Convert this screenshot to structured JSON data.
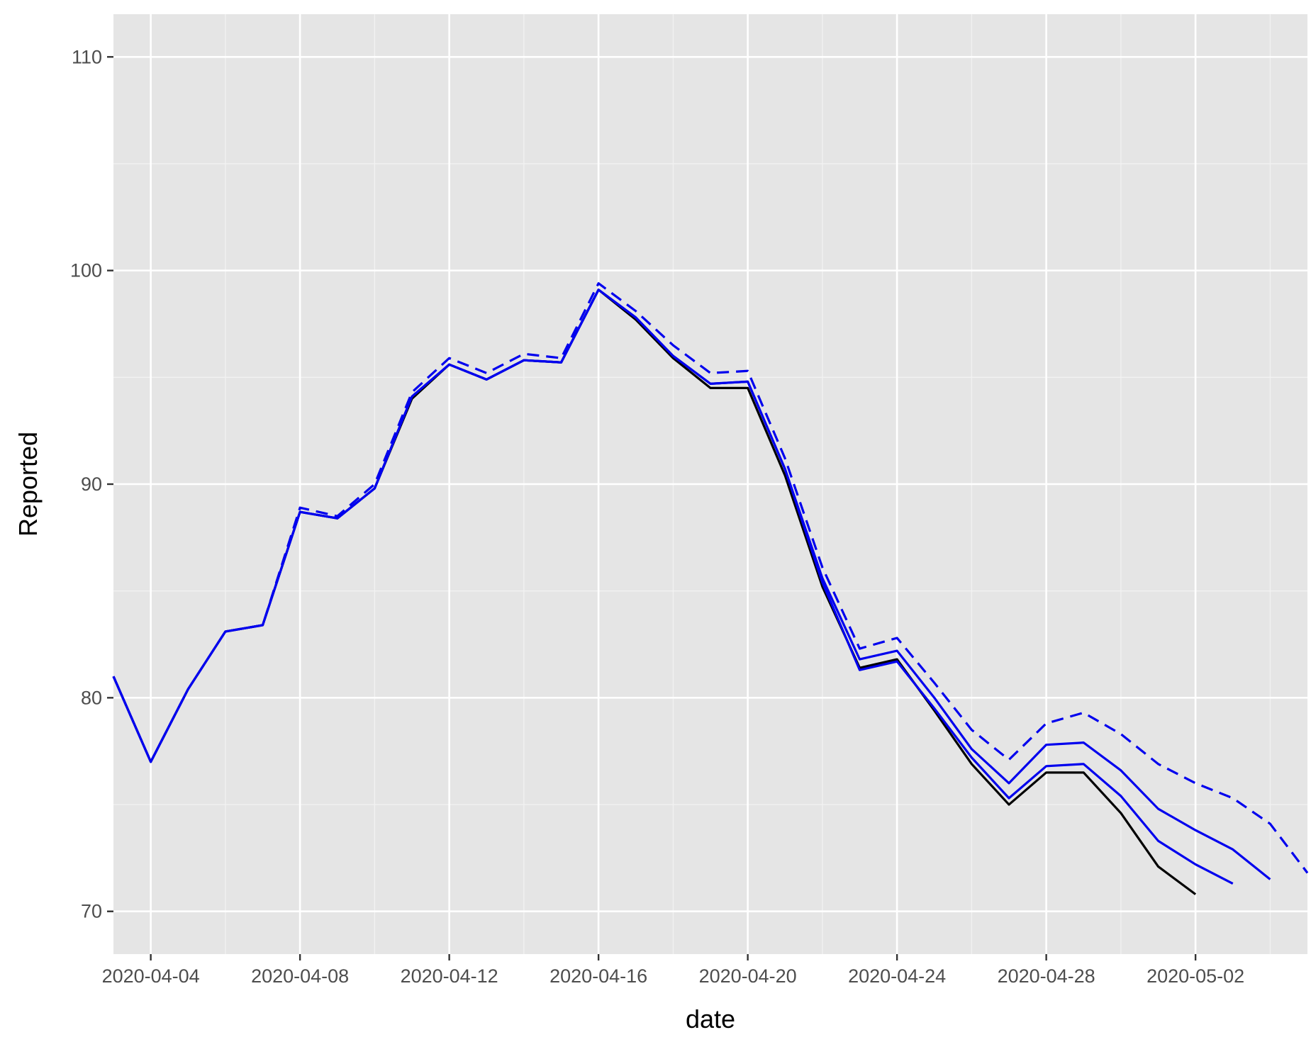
{
  "chart_data": {
    "type": "line",
    "xlabel": "date",
    "ylabel": "Reported",
    "xlim": [
      "2020-04-03",
      "2020-05-05"
    ],
    "ylim": [
      68,
      112
    ],
    "x_ticks": [
      "2020-04-04",
      "2020-04-08",
      "2020-04-12",
      "2020-04-16",
      "2020-04-20",
      "2020-04-24",
      "2020-04-28",
      "2020-05-02"
    ],
    "y_ticks": [
      70,
      80,
      90,
      100,
      110
    ],
    "grid": true,
    "legend": "none",
    "panel_background": "#e5e5e5",
    "series": [
      {
        "color": "#000000",
        "line_style": "solid",
        "points": [
          [
            "2020-04-03",
            81.0
          ],
          [
            "2020-04-04",
            77.0
          ],
          [
            "2020-04-05",
            80.4
          ],
          [
            "2020-04-06",
            83.1
          ],
          [
            "2020-04-07",
            83.4
          ],
          [
            "2020-04-08",
            88.7
          ],
          [
            "2020-04-09",
            88.4
          ],
          [
            "2020-04-10",
            89.8
          ],
          [
            "2020-04-11",
            94.0
          ],
          [
            "2020-04-12",
            95.6
          ],
          [
            "2020-04-13",
            94.9
          ],
          [
            "2020-04-14",
            95.8
          ],
          [
            "2020-04-15",
            95.7
          ],
          [
            "2020-04-16",
            99.1
          ],
          [
            "2020-04-17",
            97.7
          ],
          [
            "2020-04-18",
            95.9
          ],
          [
            "2020-04-19",
            94.5
          ],
          [
            "2020-04-20",
            94.5
          ],
          [
            "2020-04-21",
            90.4
          ],
          [
            "2020-04-22",
            85.2
          ],
          [
            "2020-04-23",
            81.4
          ],
          [
            "2020-04-24",
            81.8
          ],
          [
            "2020-04-25",
            79.4
          ],
          [
            "2020-04-26",
            76.9
          ],
          [
            "2020-04-27",
            75.0
          ],
          [
            "2020-04-28",
            76.5
          ],
          [
            "2020-04-29",
            76.5
          ],
          [
            "2020-04-30",
            74.6
          ],
          [
            "2020-05-01",
            72.1
          ],
          [
            "2020-05-02",
            70.8
          ]
        ]
      },
      {
        "color": "#0000ee",
        "line_style": "solid",
        "points": [
          [
            "2020-04-03",
            81.0
          ],
          [
            "2020-04-04",
            77.0
          ],
          [
            "2020-04-05",
            80.4
          ],
          [
            "2020-04-06",
            83.1
          ],
          [
            "2020-04-07",
            83.4
          ],
          [
            "2020-04-08",
            88.7
          ],
          [
            "2020-04-09",
            88.4
          ],
          [
            "2020-04-10",
            89.8
          ],
          [
            "2020-04-11",
            94.1
          ],
          [
            "2020-04-12",
            95.6
          ],
          [
            "2020-04-13",
            94.9
          ],
          [
            "2020-04-14",
            95.8
          ],
          [
            "2020-04-15",
            95.7
          ],
          [
            "2020-04-16",
            99.1
          ],
          [
            "2020-04-17",
            97.8
          ],
          [
            "2020-04-18",
            96.0
          ],
          [
            "2020-04-19",
            94.7
          ],
          [
            "2020-04-20",
            94.8
          ],
          [
            "2020-04-21",
            90.7
          ],
          [
            "2020-04-22",
            85.4
          ],
          [
            "2020-04-23",
            81.3
          ],
          [
            "2020-04-24",
            81.7
          ],
          [
            "2020-04-25",
            79.5
          ],
          [
            "2020-04-26",
            77.2
          ],
          [
            "2020-04-27",
            75.3
          ],
          [
            "2020-04-28",
            76.8
          ],
          [
            "2020-04-29",
            76.9
          ],
          [
            "2020-04-30",
            75.4
          ],
          [
            "2020-05-01",
            73.3
          ],
          [
            "2020-05-02",
            72.2
          ],
          [
            "2020-05-03",
            71.3
          ]
        ]
      },
      {
        "color": "#0000ee",
        "line_style": "solid",
        "points": [
          [
            "2020-04-03",
            81.0
          ],
          [
            "2020-04-04",
            77.0
          ],
          [
            "2020-04-05",
            80.4
          ],
          [
            "2020-04-06",
            83.1
          ],
          [
            "2020-04-07",
            83.4
          ],
          [
            "2020-04-08",
            88.7
          ],
          [
            "2020-04-09",
            88.4
          ],
          [
            "2020-04-10",
            89.8
          ],
          [
            "2020-04-11",
            94.1
          ],
          [
            "2020-04-12",
            95.6
          ],
          [
            "2020-04-13",
            94.9
          ],
          [
            "2020-04-14",
            95.8
          ],
          [
            "2020-04-15",
            95.7
          ],
          [
            "2020-04-16",
            99.1
          ],
          [
            "2020-04-17",
            97.8
          ],
          [
            "2020-04-18",
            96.0
          ],
          [
            "2020-04-19",
            94.7
          ],
          [
            "2020-04-20",
            94.8
          ],
          [
            "2020-04-21",
            90.7
          ],
          [
            "2020-04-22",
            85.6
          ],
          [
            "2020-04-23",
            81.8
          ],
          [
            "2020-04-24",
            82.2
          ],
          [
            "2020-04-25",
            80.0
          ],
          [
            "2020-04-26",
            77.6
          ],
          [
            "2020-04-27",
            76.0
          ],
          [
            "2020-04-28",
            77.8
          ],
          [
            "2020-04-29",
            77.9
          ],
          [
            "2020-04-30",
            76.6
          ],
          [
            "2020-05-01",
            74.8
          ],
          [
            "2020-05-02",
            73.8
          ],
          [
            "2020-05-03",
            72.9
          ],
          [
            "2020-05-04",
            71.5
          ]
        ]
      },
      {
        "color": "#0000ee",
        "line_style": "dashed",
        "points": [
          [
            "2020-04-03",
            81.0
          ],
          [
            "2020-04-04",
            77.0
          ],
          [
            "2020-04-05",
            80.4
          ],
          [
            "2020-04-06",
            83.1
          ],
          [
            "2020-04-07",
            83.4
          ],
          [
            "2020-04-08",
            88.9
          ],
          [
            "2020-04-09",
            88.5
          ],
          [
            "2020-04-10",
            90.0
          ],
          [
            "2020-04-11",
            94.3
          ],
          [
            "2020-04-12",
            95.9
          ],
          [
            "2020-04-13",
            95.2
          ],
          [
            "2020-04-14",
            96.1
          ],
          [
            "2020-04-15",
            95.9
          ],
          [
            "2020-04-16",
            99.4
          ],
          [
            "2020-04-17",
            98.1
          ],
          [
            "2020-04-18",
            96.5
          ],
          [
            "2020-04-19",
            95.2
          ],
          [
            "2020-04-20",
            95.3
          ],
          [
            "2020-04-21",
            91.2
          ],
          [
            "2020-04-22",
            86.1
          ],
          [
            "2020-04-23",
            82.3
          ],
          [
            "2020-04-24",
            82.8
          ],
          [
            "2020-04-25",
            80.7
          ],
          [
            "2020-04-26",
            78.5
          ],
          [
            "2020-04-27",
            77.1
          ],
          [
            "2020-04-28",
            78.8
          ],
          [
            "2020-04-29",
            79.3
          ],
          [
            "2020-04-30",
            78.3
          ],
          [
            "2020-05-01",
            76.9
          ],
          [
            "2020-05-02",
            76.0
          ],
          [
            "2020-05-03",
            75.3
          ],
          [
            "2020-05-04",
            74.1
          ],
          [
            "2020-05-05",
            71.8
          ]
        ]
      }
    ]
  }
}
